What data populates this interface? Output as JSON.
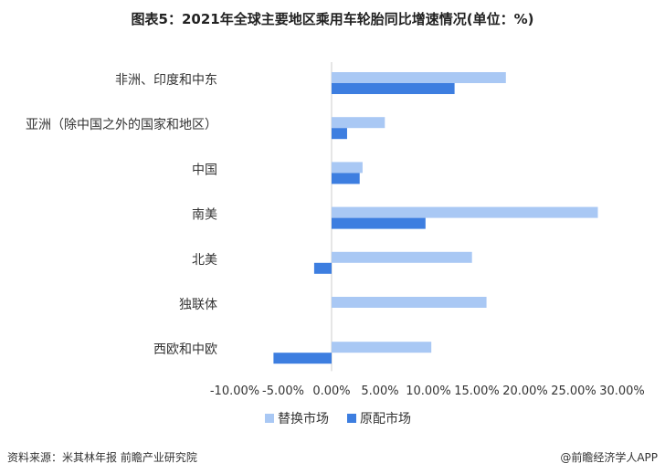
{
  "title": "图表5：2021年全球主要地区乘用车轮胎同比增速情况(单位：%)",
  "source": "资料来源：米其林年报 前瞻产业研究院",
  "credit": "@前瞻经济学人APP",
  "colors": {
    "replacement": "#a9c8f4",
    "oem": "#3d7ee0",
    "axis": "#cccccc"
  },
  "chart_data": {
    "type": "bar",
    "orientation": "horizontal",
    "categories": [
      "非洲、印度和中东",
      "亚洲（除中国之外的国家和地区）",
      "中国",
      "南美",
      "北美",
      "独联体",
      "西欧和中欧"
    ],
    "series": [
      {
        "name": "替换市场",
        "values": [
          18.0,
          5.5,
          3.2,
          27.5,
          14.5,
          16.0,
          10.3
        ]
      },
      {
        "name": "原配市场",
        "values": [
          12.7,
          1.6,
          2.9,
          9.7,
          -1.8,
          null,
          -6.0
        ]
      }
    ],
    "xlim": [
      -10,
      30
    ],
    "tick_labels": [
      "-10.00%",
      "-5.00%",
      "0.00%",
      "5.00%",
      "10.00%",
      "15.00%",
      "20.00%",
      "25.00%",
      "30.00%"
    ],
    "legend_position": "bottom"
  }
}
